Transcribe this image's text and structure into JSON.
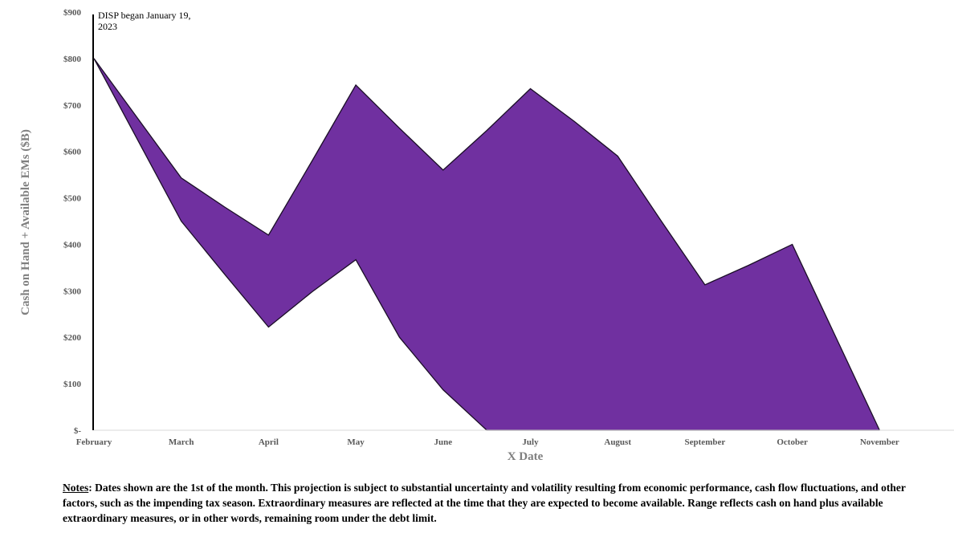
{
  "chart_data": {
    "type": "area",
    "title": "",
    "xlabel": "X Date",
    "ylabel": "Cash on Hand + Available EMs ($B)",
    "x_tick_labels": [
      "February",
      "March",
      "April",
      "May",
      "June",
      "July",
      "August",
      "September",
      "October",
      "November"
    ],
    "y_tick_labels": [
      "$-",
      "$100",
      "$200",
      "$300",
      "$400",
      "$500",
      "$600",
      "$700",
      "$800",
      "$900"
    ],
    "ylim": [
      0,
      900
    ],
    "xlim": [
      0,
      10
    ],
    "grid": false,
    "series": [
      {
        "role": "upper",
        "x": [
          0,
          1,
          1.5,
          2,
          2.5,
          3,
          3.5,
          4,
          4.5,
          5,
          5.5,
          6,
          6.5,
          7,
          7.5,
          8,
          8.5,
          9
        ],
        "values": [
          800,
          543,
          480,
          420,
          580,
          743,
          650,
          560,
          645,
          735,
          665,
          590,
          450,
          313,
          355,
          400,
          200,
          0
        ]
      },
      {
        "role": "lower",
        "x": [
          0,
          1,
          1.5,
          2,
          2.5,
          3,
          3.5,
          4,
          4.5,
          5,
          5.5,
          6,
          6.5,
          7,
          7.5,
          8,
          8.5,
          9
        ],
        "values": [
          800,
          450,
          335,
          222,
          298,
          367,
          200,
          87,
          0,
          0,
          0,
          0,
          0,
          0,
          0,
          0,
          0,
          0
        ]
      }
    ],
    "fill_color": "#7030a0",
    "annotation": {
      "x": 0,
      "lines": [
        "DISP began January 19,",
        "2023"
      ]
    }
  },
  "notes": {
    "label": "Notes",
    "text": ": Dates shown are the 1st of the month. This projection is subject to substantial uncertainty and volatility resulting from economic performance, cash flow fluctuations, and other factors, such as the impending tax season. Extraordinary measures are reflected at the time that they are expected to become available. Range reflects cash on hand plus available extraordinary measures, or in other words, remaining room under the debt limit."
  }
}
